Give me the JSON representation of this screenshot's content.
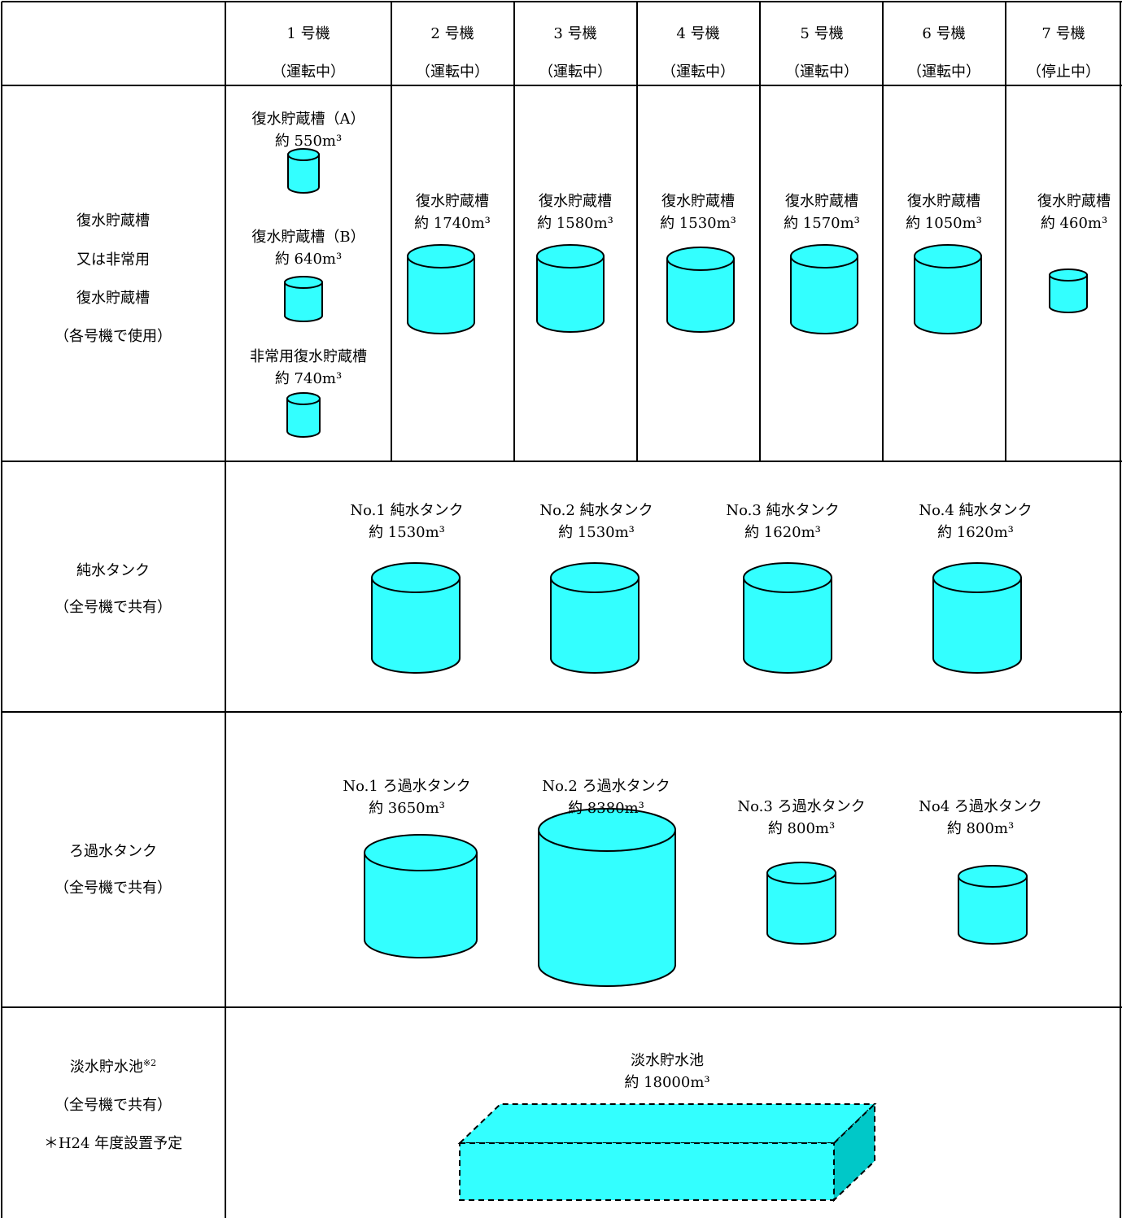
{
  "header": {
    "columns": [
      {
        "unit": "1 号機",
        "status": "（運転中）"
      },
      {
        "unit": "2 号機",
        "status": "（運転中）"
      },
      {
        "unit": "3 号機",
        "status": "（運転中）"
      },
      {
        "unit": "4 号機",
        "status": "（運転中）"
      },
      {
        "unit": "5 号機",
        "status": "（運転中）"
      },
      {
        "unit": "6 号機",
        "status": "（運転中）"
      },
      {
        "unit": "7 号機",
        "status": "（停止中）"
      }
    ]
  },
  "rows": [
    {
      "label": [
        "復水貯蔵槽",
        "又は非常用",
        "復水貯蔵槽",
        "（各号機で使用）"
      ],
      "tanks": [
        {
          "name": "復水貯蔵槽（A）",
          "volume": "約 550m³"
        },
        {
          "name": "復水貯蔵槽（B）",
          "volume": "約 640m³"
        },
        {
          "name": "非常用復水貯蔵槽",
          "volume": "約 740m³"
        },
        {
          "name": "復水貯蔵槽",
          "volume": "約 1740m³"
        },
        {
          "name": "復水貯蔵槽",
          "volume": "約 1580m³"
        },
        {
          "name": "復水貯蔵槽",
          "volume": "約 1530m³"
        },
        {
          "name": "復水貯蔵槽",
          "volume": "約 1570m³"
        },
        {
          "name": "復水貯蔵槽",
          "volume": "約 1050m³"
        },
        {
          "name": "復水貯蔵槽",
          "volume": "約 460m³"
        }
      ]
    },
    {
      "label": [
        "純水タンク",
        "（全号機で共有）"
      ],
      "tanks": [
        {
          "name": "No.1 純水タンク",
          "volume": "約 1530m³"
        },
        {
          "name": "No.2 純水タンク",
          "volume": "約 1530m³"
        },
        {
          "name": "No.3 純水タンク",
          "volume": "約 1620m³"
        },
        {
          "name": "No.4 純水タンク",
          "volume": "約 1620m³"
        }
      ]
    },
    {
      "label": [
        "ろ過水タンク",
        "（全号機で共有）"
      ],
      "tanks": [
        {
          "name": "No.1 ろ過水タンク",
          "volume": "約 3650m³"
        },
        {
          "name": "No.2 ろ過水タンク",
          "volume": "約 8380m³"
        },
        {
          "name": "No.3 ろ過水タンク",
          "volume": "約 800m³"
        },
        {
          "name": "No4 ろ過水タンク",
          "volume": "約 800m³"
        }
      ]
    },
    {
      "label": [
        "淡水貯水池",
        "（全号機で共有）",
        "＊H24 年度設置予定"
      ],
      "note_mark": "※2",
      "tanks": [
        {
          "name": "淡水貯水池",
          "volume": "約 18000m³"
        }
      ]
    }
  ]
}
